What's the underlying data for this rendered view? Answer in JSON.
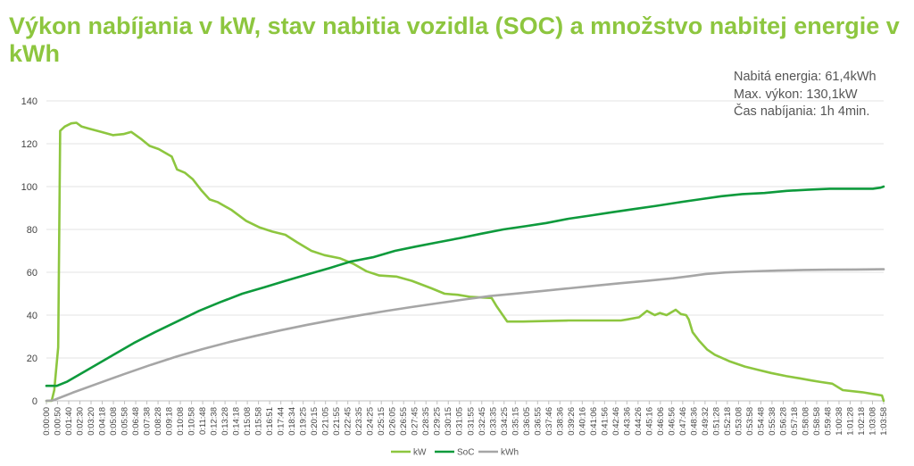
{
  "chart_data": {
    "type": "line",
    "title": "Výkon nabíjania v kW, stav nabitia vozidla (SOC) a množstvo nabitej energie v kWh",
    "annotations": [
      "Nabitá energia: 61,4kWh",
      "Max. výkon: 130,1kW",
      "Čas nabíjania: 1h 4min."
    ],
    "ylim": [
      0,
      140
    ],
    "yticks": [
      0,
      20,
      40,
      60,
      80,
      100,
      120,
      140
    ],
    "grid": true,
    "legend": "bottom-center",
    "x_unit": "minutes",
    "x_range": [
      0,
      64.13
    ],
    "xtick_labels": [
      "0:00:00",
      "0:00:50",
      "0:01:40",
      "0:02:30",
      "0:03:20",
      "0:04:18",
      "0:05:08",
      "0:05:58",
      "0:06:48",
      "0:07:38",
      "0:08:28",
      "0:09:18",
      "0:10:08",
      "0:10:58",
      "0:11:48",
      "0:12:38",
      "0:13:28",
      "0:14:18",
      "0:15:08",
      "0:15:58",
      "0:16:51",
      "0:17:44",
      "0:18:34",
      "0:19:25",
      "0:20:15",
      "0:21:05",
      "0:21:55",
      "0:22:45",
      "0:23:35",
      "0:24:25",
      "0:25:15",
      "0:26:05",
      "0:26:55",
      "0:27:45",
      "0:28:35",
      "0:29:25",
      "0:30:15",
      "0:31:05",
      "0:31:55",
      "0:32:45",
      "0:33:35",
      "0:34:25",
      "0:35:15",
      "0:36:05",
      "0:36:55",
      "0:37:46",
      "0:38:36",
      "0:39:26",
      "0:40:16",
      "0:41:06",
      "0:41:56",
      "0:42:46",
      "0:43:36",
      "0:44:26",
      "0:45:16",
      "0:46:06",
      "0:46:56",
      "0:47:46",
      "0:48:36",
      "0:49:32",
      "0:51:28",
      "0:52:18",
      "0:53:08",
      "0:53:58",
      "0:54:48",
      "0:55:38",
      "0:56:28",
      "0:57:18",
      "0:58:08",
      "0:58:58",
      "0:59:48",
      "1:00:38",
      "1:01:28",
      "1:02:18",
      "1:03:08",
      "1:03:58"
    ],
    "series": [
      {
        "name": "kW",
        "color": "#8dc63f",
        "x": [
          0,
          0.4,
          0.6,
          0.9,
          1.05,
          1.4,
          1.9,
          2.3,
          2.7,
          3.3,
          4.2,
          5.1,
          5.9,
          6.5,
          7.3,
          7.9,
          8.6,
          9.6,
          10.0,
          10.6,
          11.2,
          11.9,
          12.5,
          13.1,
          14.2,
          15.3,
          16.3,
          17.3,
          18.3,
          19.2,
          20.3,
          21.3,
          22.5,
          23.5,
          24.5,
          25.5,
          26.8,
          28.0,
          29.5,
          30.5,
          31.5,
          32.5,
          34.1,
          34.5,
          35.3,
          36.5,
          38.0,
          40.0,
          42.0,
          44.0,
          44.5,
          45.4,
          46.0,
          46.6,
          47.0,
          47.5,
          48.2,
          48.6,
          49.0,
          49.2,
          49.5,
          50.0,
          50.6,
          51.2,
          52.3,
          53.5,
          54.5,
          55.5,
          56.7,
          57.7,
          58.6,
          59.3,
          60.2,
          61.0,
          62.5,
          63.5,
          64.0,
          64.13
        ],
        "values": [
          0,
          0,
          5,
          25,
          126,
          128,
          129.5,
          129.8,
          128,
          127,
          125.5,
          124,
          124.5,
          125.5,
          122,
          119,
          117.5,
          114,
          108,
          106.5,
          103.5,
          98,
          94,
          92.8,
          89,
          84,
          81,
          79,
          77.5,
          74,
          70,
          68,
          66.5,
          64,
          60.5,
          58.5,
          58,
          56,
          52.5,
          50,
          49.5,
          48.5,
          48,
          44,
          37,
          37,
          37.2,
          37.5,
          37.5,
          37.5,
          38,
          39,
          42,
          40,
          41,
          40,
          42.5,
          40.5,
          40,
          38,
          32,
          28,
          24,
          21.5,
          18.5,
          16,
          14.5,
          13,
          11.5,
          10.5,
          9.5,
          8.8,
          8,
          5,
          4,
          3,
          2.5,
          0
        ]
      },
      {
        "name": "SoC",
        "color": "#0d9a3c",
        "x": [
          0,
          0.8,
          1.6,
          3.3,
          5.0,
          6.7,
          8.3,
          10.0,
          11.7,
          13.3,
          15.0,
          16.7,
          18.3,
          20.0,
          21.7,
          23.3,
          25.0,
          26.7,
          28.3,
          30.0,
          31.7,
          33.3,
          35.0,
          36.7,
          38.3,
          40.0,
          41.7,
          43.3,
          45.0,
          46.7,
          48.3,
          50.0,
          51.7,
          53.3,
          55.0,
          56.7,
          58.3,
          60.0,
          61.7,
          63.3,
          63.9,
          64.13
        ],
        "values": [
          7,
          7,
          9,
          15,
          21,
          27,
          32,
          37,
          42,
          46,
          50,
          53,
          56,
          59,
          62,
          65,
          67,
          70,
          72,
          74,
          76,
          78,
          80,
          81.5,
          83,
          85,
          86.5,
          88,
          89.5,
          91,
          92.5,
          94,
          95.5,
          96.5,
          97,
          98,
          98.5,
          99,
          99,
          99,
          99.5,
          100
        ]
      },
      {
        "name": "kWh",
        "color": "#a6a6a6",
        "x": [
          0,
          0.5,
          1.05,
          2,
          4,
          6,
          8,
          10,
          12,
          14,
          16,
          18,
          20,
          22,
          24,
          26,
          28,
          30,
          32,
          34,
          36,
          38,
          40,
          42,
          44,
          46,
          48,
          49.3,
          50.5,
          52,
          54,
          56,
          58,
          60,
          62,
          64.13
        ],
        "values": [
          0,
          0.2,
          1.5,
          3.8,
          8.2,
          12.6,
          16.8,
          20.7,
          24.2,
          27.4,
          30.3,
          33.0,
          35.5,
          37.8,
          39.9,
          41.9,
          43.8,
          45.6,
          47.3,
          48.9,
          50.1,
          51.3,
          52.5,
          53.7,
          54.9,
          56.0,
          57.2,
          58.2,
          59.2,
          59.9,
          60.4,
          60.8,
          61.1,
          61.2,
          61.3,
          61.4
        ]
      }
    ]
  }
}
